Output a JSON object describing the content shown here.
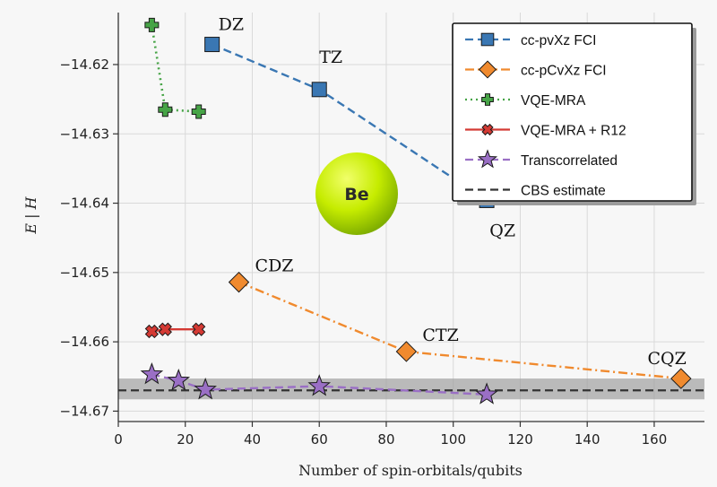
{
  "chart_data": {
    "type": "line",
    "xlabel": "Number of spin-orbitals/qubits",
    "ylabel": "E | H",
    "xlim": [
      0,
      175
    ],
    "ylim": [
      -14.6715,
      -14.6125
    ],
    "x_ticks": [
      0,
      20,
      40,
      60,
      80,
      100,
      120,
      140,
      160
    ],
    "y_ticks": [
      -14.62,
      -14.63,
      -14.64,
      -14.65,
      -14.66,
      -14.67
    ],
    "x_tick_labels": [
      "0",
      "20",
      "40",
      "60",
      "80",
      "100",
      "120",
      "140",
      "160"
    ],
    "y_tick_labels": [
      "−14.62",
      "−14.63",
      "−14.64",
      "−14.65",
      "−14.66",
      "−14.67"
    ],
    "grid": true,
    "legend_position": "top-right",
    "molecule_label": "Be",
    "series": [
      {
        "name": "cc-pvXz FCI",
        "color": "#3a77b3",
        "marker": "square",
        "line_style": "dashed",
        "x": [
          28,
          60,
          110
        ],
        "y": [
          -14.6171,
          -14.6236,
          -14.6396
        ],
        "point_labels": [
          "DZ",
          "TZ",
          "QZ"
        ]
      },
      {
        "name": "cc-pCvXz FCI",
        "color": "#f08a2e",
        "marker": "diamond",
        "line_style": "dashdot",
        "x": [
          36,
          86,
          168
        ],
        "y": [
          -14.6514,
          -14.6614,
          -14.6653
        ],
        "point_labels": [
          "CDZ",
          "CTZ",
          "CQZ"
        ]
      },
      {
        "name": "VQE-MRA",
        "color": "#47a447",
        "marker": "plus",
        "line_style": "dotted",
        "x": [
          10,
          14,
          24
        ],
        "y": [
          -14.6143,
          -14.6265,
          -14.6268
        ]
      },
      {
        "name": "VQE-MRA + R12",
        "color": "#d43a34",
        "marker": "x",
        "line_style": "solid",
        "x": [
          10,
          14,
          24
        ],
        "y": [
          -14.6585,
          -14.6582,
          -14.6582
        ]
      },
      {
        "name": "Transcorrelated",
        "color": "#9a6fc5",
        "marker": "star",
        "line_style": "dashed",
        "x": [
          10,
          18,
          26,
          60,
          110
        ],
        "y": [
          -14.6647,
          -14.6656,
          -14.6669,
          -14.6664,
          -14.6676
        ]
      }
    ],
    "cbs_estimate": {
      "name": "CBS estimate",
      "color": "#333333",
      "y": -14.667,
      "band": [
        -14.6683,
        -14.6653
      ]
    }
  }
}
